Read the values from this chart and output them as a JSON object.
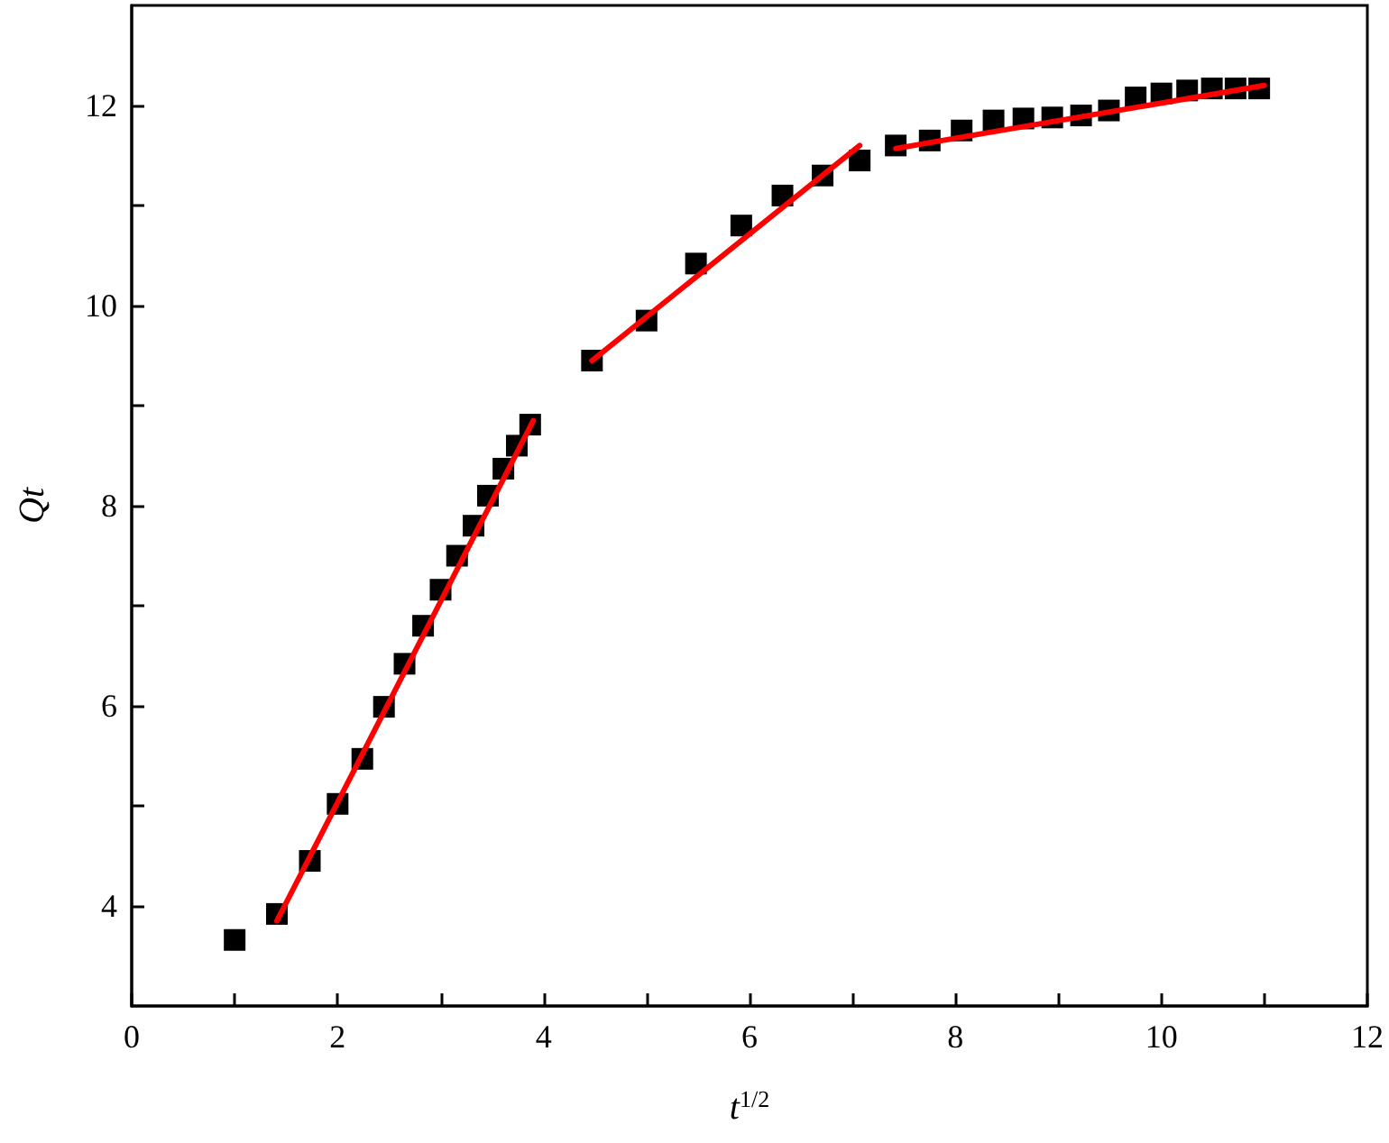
{
  "chart_data": {
    "type": "scatter",
    "xlabel": "t$^{1/2}$",
    "ylabel": "Qt",
    "xlim": [
      0,
      12
    ],
    "xticks": [
      0,
      {
        "value": 1,
        "label": null
      },
      2,
      {
        "value": 3,
        "label": null
      },
      4,
      {
        "value": 5,
        "label": null
      },
      6,
      {
        "value": 7,
        "label": null
      },
      8,
      {
        "value": 9,
        "label": null
      },
      10,
      {
        "value": 11,
        "label": null
      },
      12
    ],
    "ylim": [
      3,
      13
    ],
    "yticks": [
      4,
      {
        "value": 5,
        "label": null
      },
      6,
      {
        "value": 7,
        "label": null
      },
      8,
      {
        "value": 9,
        "label": null
      },
      10,
      {
        "value": 11,
        "label": null
      },
      12
    ],
    "grid": false,
    "series": [
      {
        "color": "#000000",
        "marker": "square",
        "x": [
          1,
          1.41,
          1.73,
          2,
          2.24,
          2.45,
          2.65,
          2.83,
          3,
          3.16,
          3.32,
          3.46,
          3.61,
          3.74,
          3.87,
          4.47,
          5,
          5.48,
          5.92,
          6.32,
          6.71,
          7.07,
          7.42,
          7.75,
          8.06,
          8.37,
          8.66,
          8.94,
          9.22,
          9.49,
          9.75,
          10,
          10.25,
          10.49,
          10.72,
          10.95
        ],
        "values": [
          3.66,
          3.92,
          4.45,
          5.02,
          5.47,
          5.99,
          6.42,
          6.8,
          7.16,
          7.5,
          7.8,
          8.1,
          8.37,
          8.6,
          8.81,
          9.45,
          9.85,
          10.42,
          10.8,
          11.1,
          11.3,
          11.45,
          11.6,
          11.65,
          11.75,
          11.85,
          11.87,
          11.88,
          11.9,
          11.95,
          12.08,
          12.12,
          12.15,
          12.17,
          12.17,
          12.17
        ]
      },
      {
        "type": "line",
        "color": "#ff0000",
        "line_style": "solid",
        "marker": "none",
        "x": [
          1.41,
          3.9
        ],
        "values": [
          3.85,
          8.85
        ]
      },
      {
        "type": "line",
        "color": "#ff0000",
        "line_style": "solid",
        "marker": "none",
        "x": [
          4.47,
          7.07
        ],
        "values": [
          9.45,
          11.6
        ]
      },
      {
        "type": "line",
        "color": "#ff0000",
        "line_style": "solid",
        "marker": "none",
        "x": [
          7.42,
          11
        ],
        "values": [
          11.57,
          12.2
        ]
      }
    ]
  }
}
